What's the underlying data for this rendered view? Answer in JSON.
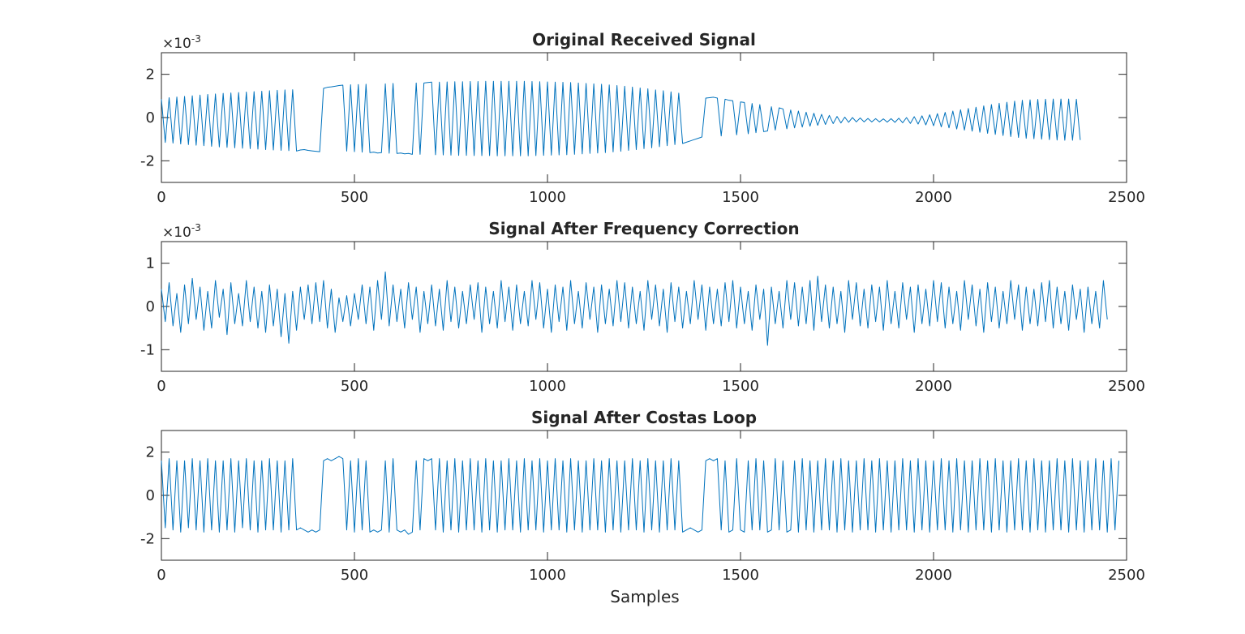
{
  "figure": {
    "xlabel": "Samples"
  },
  "chart_data": [
    {
      "type": "line",
      "title": "Original Received Signal",
      "xlabel": "",
      "ylabel": "",
      "xlim": [
        0,
        2500
      ],
      "ylim": [
        -0.003,
        0.003
      ],
      "xticks": [
        0,
        500,
        1000,
        1500,
        2000,
        2500
      ],
      "xtick_labels": [
        "0",
        "500",
        "1000",
        "1500",
        "2000",
        "2500"
      ],
      "yticks": [
        -0.002,
        0,
        0.002
      ],
      "ytick_labels": [
        "-2",
        "0",
        "2"
      ],
      "exponent_label": "×10",
      "exponent": "-3",
      "grid": false,
      "line_color": "#0072BD",
      "series": [
        {
          "x_start": 0,
          "x_step": 10,
          "values": [
            0.00085,
            -0.00115,
            0.00092,
            -0.00118,
            0.00095,
            -0.00122,
            0.00098,
            -0.00125,
            0.00101,
            -0.00128,
            0.00104,
            -0.0013,
            0.00107,
            -0.00133,
            0.00109,
            -0.00136,
            0.00112,
            -0.00138,
            0.00114,
            -0.0014,
            0.00116,
            -0.00142,
            0.00118,
            -0.00144,
            0.0012,
            -0.00146,
            0.00122,
            -0.00148,
            0.00124,
            -0.0015,
            0.00126,
            -0.00152,
            0.00128,
            -0.00153,
            0.00129,
            -0.00155,
            -0.0015,
            -0.00148,
            -0.00152,
            -0.00154,
            -0.00156,
            -0.00158,
            0.00135,
            0.0014,
            0.00142,
            0.00145,
            0.00148,
            0.0015,
            -0.00155,
            0.00152,
            -0.00158,
            0.00153,
            -0.0016,
            0.00154,
            -0.00162,
            -0.0016,
            -0.00164,
            -0.00162,
            0.00156,
            -0.00165,
            0.00158,
            -0.00166,
            -0.00164,
            -0.00168,
            -0.00166,
            -0.0017,
            0.0016,
            -0.0017,
            0.0016,
            0.00162,
            0.00164,
            -0.00172,
            0.00164,
            -0.00173,
            0.00165,
            -0.00174,
            0.00166,
            -0.00175,
            0.00166,
            -0.00175,
            0.00167,
            -0.00176,
            0.00167,
            -0.00176,
            0.00168,
            -0.00176,
            0.00168,
            -0.00177,
            0.00168,
            -0.00177,
            0.00168,
            -0.00177,
            0.00168,
            -0.00177,
            0.00168,
            -0.00177,
            0.00167,
            -0.00176,
            0.00166,
            -0.00175,
            0.00165,
            -0.00174,
            0.00164,
            -0.00173,
            0.00163,
            -0.00172,
            0.00162,
            -0.0017,
            0.0016,
            -0.00168,
            0.00158,
            -0.00166,
            0.00156,
            -0.00164,
            0.00154,
            -0.00162,
            0.00151,
            -0.00159,
            0.00148,
            -0.00156,
            0.00145,
            -0.00152,
            0.00141,
            -0.00148,
            0.00137,
            -0.00144,
            0.00133,
            -0.0014,
            0.00128,
            -0.00135,
            0.00124,
            -0.0013,
            0.00119,
            -0.00125,
            0.00113,
            -0.0012,
            -0.00114,
            -0.00108,
            -0.00102,
            -0.00096,
            -0.0009,
            0.0009,
            0.00092,
            0.00094,
            0.0009,
            -0.00085,
            0.00085,
            0.0008,
            0.00078,
            -0.0008,
            0.00072,
            0.0007,
            -0.00075,
            0.00065,
            -0.0007,
            0.0006,
            -0.00065,
            -0.00062,
            0.0005,
            -0.00058,
            0.00045,
            0.0004,
            -0.00052,
            0.00035,
            -0.00048,
            0.0003,
            -0.00044,
            0.00025,
            -0.0004,
            0.0002,
            -0.00036,
            0.00015,
            -0.00032,
            0.0001,
            -0.00028,
            5e-05,
            -0.00025,
            2e-05,
            -0.00022,
            0.0,
            -0.0002,
            -2e-05,
            -0.0002,
            -4e-05,
            -0.0002,
            -5e-05,
            -0.0002,
            -6e-05,
            -0.00021,
            -5e-05,
            -0.00022,
            -3e-05,
            -0.00024,
            0.0,
            -0.00027,
            4e-05,
            -0.0003,
            8e-05,
            -0.00034,
            0.00013,
            -0.00038,
            0.00018,
            -0.00043,
            0.00024,
            -0.00048,
            0.0003,
            -0.00053,
            0.00036,
            -0.00058,
            0.00042,
            -0.00063,
            0.00048,
            -0.00068,
            0.00054,
            -0.00073,
            0.0006,
            -0.00078,
            0.00066,
            -0.00083,
            0.00071,
            -0.00088,
            0.00076,
            -0.00092,
            0.0008,
            -0.00096,
            0.00082,
            -0.00098,
            0.00084,
            -0.001,
            0.00085,
            -0.00102,
            0.00086,
            -0.00104,
            0.00086,
            -0.00105,
            0.00086,
            -0.00105,
            0.00085,
            -0.00104
          ]
        }
      ]
    },
    {
      "type": "line",
      "title": "Signal After Frequency Correction",
      "xlabel": "",
      "ylabel": "",
      "xlim": [
        0,
        2500
      ],
      "ylim": [
        -0.0015,
        0.0015
      ],
      "xticks": [
        0,
        500,
        1000,
        1500,
        2000,
        2500
      ],
      "xtick_labels": [
        "0",
        "500",
        "1000",
        "1500",
        "2000",
        "2500"
      ],
      "yticks": [
        -0.001,
        0,
        0.001
      ],
      "ytick_labels": [
        "-1",
        "0",
        "1"
      ],
      "exponent_label": "×10",
      "exponent": "-3",
      "grid": false,
      "line_color": "#0072BD",
      "series": [
        {
          "x_start": 0,
          "x_step": 10,
          "values": [
            0.0004,
            -0.00035,
            0.00055,
            -0.00045,
            0.0003,
            -0.0006,
            0.0005,
            -0.0004,
            0.00065,
            -0.0003,
            0.00045,
            -0.00055,
            0.00035,
            -0.0005,
            0.0006,
            -0.00025,
            0.0004,
            -0.00065,
            0.00055,
            -0.0004,
            0.0003,
            -0.00045,
            0.0006,
            -0.00035,
            0.00045,
            -0.0005,
            0.00035,
            -0.0006,
            0.0005,
            -0.00045,
            0.0004,
            -0.0007,
            0.0003,
            -0.00085,
            0.00035,
            -0.00055,
            0.00045,
            -0.0003,
            0.0005,
            -0.0004,
            0.00055,
            -0.00035,
            0.0006,
            -0.0005,
            0.0004,
            -0.0006,
            0.0002,
            -0.00035,
            0.00025,
            -0.00045,
            0.0003,
            -0.0003,
            0.0005,
            -0.0004,
            0.00045,
            -0.00055,
            0.0006,
            -0.0003,
            0.0008,
            -0.00045,
            0.0005,
            -0.00035,
            0.0004,
            -0.0005,
            0.00055,
            -0.0003,
            0.00045,
            -0.0006,
            0.00035,
            -0.0004,
            0.0005,
            -0.00045,
            0.0004,
            -0.00055,
            0.0006,
            -0.00035,
            0.00045,
            -0.0005,
            0.00035,
            -0.0004,
            0.0005,
            -0.0003,
            0.00055,
            -0.0006,
            0.00045,
            -0.0004,
            0.00035,
            -0.0005,
            0.0006,
            -0.00035,
            0.00045,
            -0.00055,
            0.0005,
            -0.0004,
            0.00035,
            -0.00045,
            0.0006,
            -0.0003,
            0.00055,
            -0.0005,
            0.0004,
            -0.0006,
            0.0005,
            -0.00035,
            0.00045,
            -0.00055,
            0.0006,
            -0.0004,
            0.00035,
            -0.0005,
            0.00055,
            -0.0003,
            0.00045,
            -0.0006,
            0.0005,
            -0.0004,
            0.0004,
            -0.00045,
            0.0006,
            -0.00035,
            0.00055,
            -0.0005,
            0.00045,
            -0.0004,
            0.00035,
            -0.00055,
            0.0006,
            -0.0003,
            0.0005,
            -0.00045,
            0.0004,
            -0.0006,
            0.00055,
            -0.00035,
            0.00045,
            -0.0005,
            0.00035,
            -0.0004,
            0.0006,
            -0.0003,
            0.0005,
            -0.00055,
            0.00045,
            -0.0004,
            0.0004,
            -0.00045,
            0.00055,
            -0.00035,
            0.0006,
            -0.0005,
            0.00045,
            -0.0004,
            0.00035,
            -0.00055,
            0.0005,
            -0.0003,
            0.0004,
            -0.0009,
            0.00045,
            -0.0004,
            0.00035,
            -0.0005,
            0.0006,
            -0.0003,
            0.00055,
            -0.00045,
            0.00045,
            -0.0004,
            0.0006,
            -0.00055,
            0.0007,
            -0.00035,
            0.0005,
            -0.0005,
            0.00045,
            -0.0004,
            0.00035,
            -0.0006,
            0.0006,
            -0.0003,
            0.00055,
            -0.00045,
            0.0004,
            -0.0005,
            0.0005,
            -0.00035,
            0.00045,
            -0.00055,
            0.0006,
            -0.0004,
            0.00035,
            -0.0005,
            0.00055,
            -0.0003,
            0.00045,
            -0.0006,
            0.0005,
            -0.0004,
            0.0004,
            -0.00045,
            0.0006,
            -0.00035,
            0.00055,
            -0.0005,
            0.00045,
            -0.0004,
            0.00035,
            -0.00055,
            0.0006,
            -0.0003,
            0.0005,
            -0.00045,
            0.0004,
            -0.0006,
            0.00055,
            -0.00035,
            0.00045,
            -0.0005,
            0.00035,
            -0.0004,
            0.0006,
            -0.0003,
            0.0005,
            -0.00055,
            0.00045,
            -0.0004,
            0.0004,
            -0.00045,
            0.00055,
            -0.00035,
            0.0006,
            -0.0005,
            0.00045,
            -0.0004,
            0.00035,
            -0.00055,
            0.0005,
            -0.0003,
            0.0004,
            -0.0006,
            0.00045,
            -0.0004,
            0.00035,
            -0.0005,
            0.0006,
            -0.0003
          ]
        }
      ]
    },
    {
      "type": "line",
      "title": "Signal After Costas Loop",
      "xlabel": "Samples",
      "ylabel": "",
      "xlim": [
        0,
        2500
      ],
      "ylim": [
        -3,
        3
      ],
      "xticks": [
        0,
        500,
        1000,
        1500,
        2000,
        2500
      ],
      "xtick_labels": [
        "0",
        "500",
        "1000",
        "1500",
        "2000",
        "2500"
      ],
      "yticks": [
        -2,
        0,
        2
      ],
      "ytick_labels": [
        "-2",
        "0",
        "2"
      ],
      "grid": false,
      "line_color": "#0072BD",
      "series": [
        {
          "x_start": 0,
          "x_step": 10,
          "values": [
            1.6,
            -1.5,
            1.7,
            -1.6,
            1.6,
            -1.7,
            1.6,
            -1.5,
            1.7,
            -1.6,
            1.6,
            -1.7,
            1.7,
            -1.6,
            1.6,
            -1.7,
            1.6,
            -1.6,
            1.7,
            -1.7,
            1.6,
            -1.5,
            1.7,
            -1.6,
            1.6,
            -1.7,
            1.6,
            -1.6,
            1.7,
            -1.6,
            1.6,
            -1.7,
            1.6,
            -1.6,
            1.7,
            -1.6,
            -1.5,
            -1.6,
            -1.7,
            -1.6,
            -1.7,
            -1.6,
            1.6,
            1.7,
            1.6,
            1.7,
            1.8,
            1.7,
            -1.6,
            1.6,
            -1.7,
            1.7,
            -1.6,
            1.6,
            -1.7,
            -1.6,
            -1.7,
            -1.6,
            1.6,
            -1.7,
            1.7,
            -1.6,
            -1.7,
            -1.6,
            -1.8,
            -1.7,
            1.6,
            -1.6,
            1.7,
            1.6,
            1.7,
            -1.6,
            1.7,
            -1.7,
            1.6,
            -1.6,
            1.7,
            -1.7,
            1.6,
            -1.6,
            1.7,
            -1.6,
            1.6,
            -1.7,
            1.7,
            -1.6,
            1.6,
            -1.7,
            1.6,
            -1.6,
            1.7,
            -1.6,
            1.6,
            -1.7,
            1.7,
            -1.6,
            1.6,
            -1.6,
            1.7,
            -1.7,
            1.6,
            -1.6,
            1.7,
            -1.6,
            1.6,
            -1.7,
            1.7,
            -1.6,
            1.6,
            -1.7,
            1.6,
            -1.6,
            1.7,
            -1.6,
            1.6,
            -1.7,
            1.7,
            -1.6,
            1.6,
            -1.7,
            1.6,
            -1.6,
            1.7,
            -1.6,
            1.6,
            -1.7,
            1.7,
            -1.6,
            1.6,
            -1.7,
            1.6,
            -1.6,
            1.7,
            -1.6,
            1.6,
            -1.7,
            -1.6,
            -1.5,
            -1.6,
            -1.7,
            -1.6,
            1.6,
            1.7,
            1.6,
            1.7,
            -1.6,
            1.6,
            -1.7,
            -1.6,
            1.7,
            -1.6,
            -1.7,
            1.6,
            -1.6,
            1.7,
            -1.6,
            1.6,
            -1.7,
            -1.6,
            1.7,
            -1.6,
            1.6,
            -1.7,
            -1.6,
            1.6,
            -1.7,
            1.7,
            -1.6,
            1.6,
            -1.7,
            1.6,
            -1.6,
            1.7,
            -1.6,
            1.6,
            -1.7,
            1.7,
            -1.6,
            1.6,
            -1.7,
            1.6,
            -1.6,
            1.7,
            -1.6,
            1.6,
            -1.7,
            1.7,
            -1.6,
            1.6,
            -1.7,
            1.6,
            -1.6,
            1.7,
            -1.6,
            1.6,
            -1.7,
            1.7,
            -1.6,
            1.6,
            -1.7,
            1.6,
            -1.6,
            1.7,
            -1.6,
            1.6,
            -1.7,
            1.7,
            -1.6,
            1.6,
            -1.7,
            1.6,
            -1.6,
            1.7,
            -1.6,
            1.6,
            -1.7,
            1.7,
            -1.6,
            1.6,
            -1.7,
            1.6,
            -1.6,
            1.7,
            -1.6,
            1.6,
            -1.7,
            1.7,
            -1.6,
            1.6,
            -1.7,
            1.6,
            -1.6,
            1.7,
            -1.6,
            1.6,
            -1.7,
            1.7,
            -1.6,
            1.6,
            -1.7,
            1.6,
            -1.6,
            1.7,
            -1.6,
            1.6,
            -1.7,
            1.7,
            -1.6,
            1.6
          ]
        }
      ]
    }
  ]
}
